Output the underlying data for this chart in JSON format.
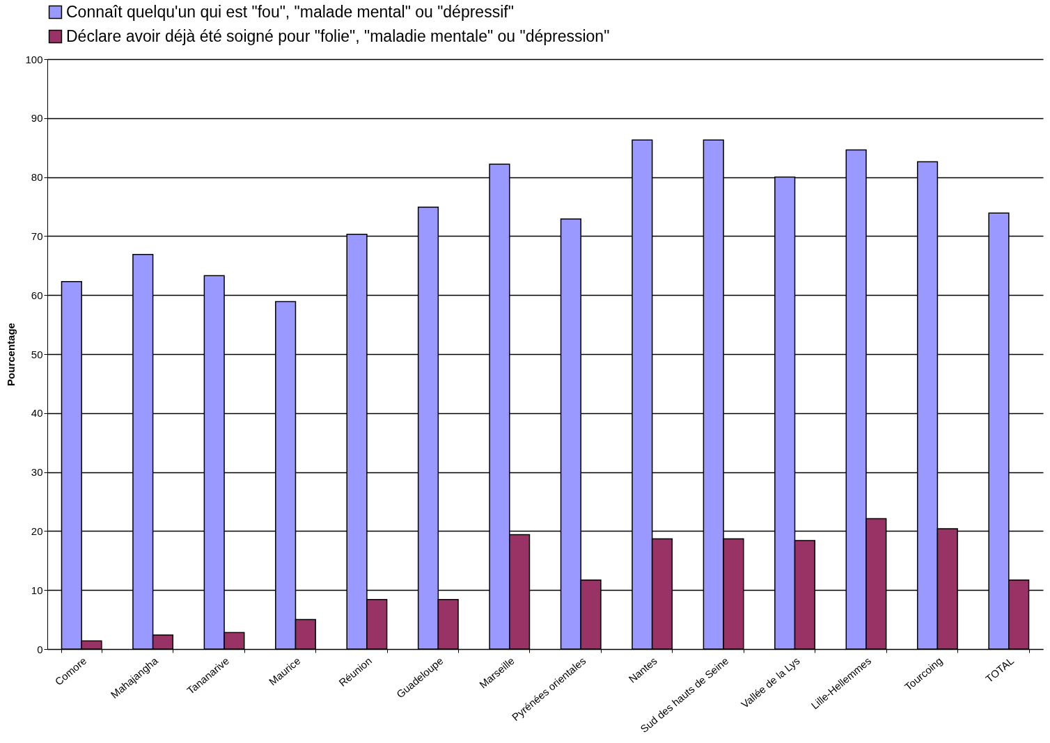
{
  "chart_data": {
    "type": "bar",
    "ylabel": "Pourcentage",
    "categories": [
      "Comore",
      "Mahajangha",
      "Tananarive",
      "Maurice",
      "Réunion",
      "Guadeloupe",
      "Marseille",
      "Pyrénées orientales",
      "Nantes",
      "Sud des hauts de Seine",
      "Vallée de la Lys",
      "Lille-Hellemmes",
      "Tourcoing",
      "TOTAL"
    ],
    "series": [
      {
        "name": "Connaît quelqu'un qui est \"fou\", \"malade mental\" ou \"dépressif\"",
        "color": "#9999ff",
        "values": [
          62.3,
          66.9,
          63.3,
          58.9,
          70.3,
          74.9,
          82.2,
          72.9,
          86.3,
          86.3,
          80.0,
          84.6,
          82.6,
          73.9
        ]
      },
      {
        "name": "Déclare avoir déjà été soigné pour \"folie\", \"maladie mentale\" ou \"dépression\"",
        "color": "#993366",
        "values": [
          1.4,
          2.4,
          2.8,
          5.0,
          8.4,
          8.4,
          19.4,
          11.7,
          18.7,
          18.7,
          18.4,
          22.1,
          20.4,
          11.7
        ]
      }
    ],
    "ylim": [
      0,
      100
    ],
    "yticks": [
      0,
      10,
      20,
      30,
      40,
      50,
      60,
      70,
      80,
      90,
      100
    ],
    "grid": "y",
    "legend": "top"
  }
}
